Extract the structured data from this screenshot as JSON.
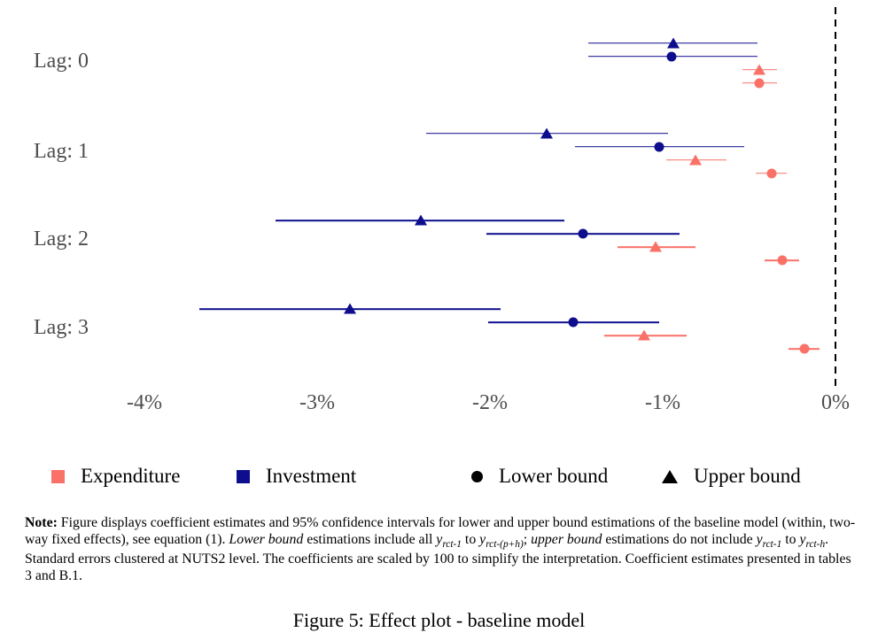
{
  "figure": {
    "caption": "Figure 5: Effect plot - baseline model"
  },
  "colors": {
    "expenditure": "#fa7168",
    "investment": "#0d0d8e",
    "axis_text": "#4d4d4d",
    "zero_line": "#000000",
    "legend_text": "#000000"
  },
  "legend": {
    "items": [
      {
        "label": "Expenditure",
        "swatch": "square",
        "color": "#fa7168"
      },
      {
        "label": "Investment",
        "swatch": "square",
        "color": "#0d0d8e"
      },
      {
        "label": "Lower bound",
        "swatch": "circle",
        "color": "#000000"
      },
      {
        "label": "Upper bound",
        "swatch": "triangle",
        "color": "#000000"
      }
    ]
  },
  "note": {
    "segments": [
      {
        "b": "Note:"
      },
      {
        "t": " Figure displays coefficient estimates and 95% confidence intervals for lower and upper bound estimations of the baseline model (within, two-way fixed effects), see equation (1). "
      },
      {
        "i": "Lower bound"
      },
      {
        "t": " estimations include all "
      },
      {
        "m": "y",
        "sub": "rct-1"
      },
      {
        "t": " to "
      },
      {
        "m": "y",
        "sub": "rct-(p+h)"
      },
      {
        "t": "; "
      },
      {
        "i": "upper bound"
      },
      {
        "t": " estimations do not include "
      },
      {
        "m": "y",
        "sub": "rct-1"
      },
      {
        "t": " to "
      },
      {
        "m": "y",
        "sub": "rct-h"
      },
      {
        "t": ". Standard errors clustered at NUTS2 level. The coefficients are scaled by 100 to simplify the interpretation. Coefficient estimates presented in tables 3 and B.1."
      }
    ]
  },
  "chart_data": {
    "type": "scatter",
    "subtype": "coefficient-effect-plot-with-95ci",
    "title": "",
    "xlabel": "",
    "ylabel": "",
    "grid": false,
    "legend_position": "bottom",
    "groups": [
      "Lag: 0",
      "Lag: 1",
      "Lag: 2",
      "Lag: 3"
    ],
    "x_ticks": [
      {
        "label": "-4%",
        "value": -4
      },
      {
        "label": "-3%",
        "value": -3
      },
      {
        "label": "-2%",
        "value": -2
      },
      {
        "label": "-1%",
        "value": -1
      },
      {
        "label": "0%",
        "value": 0
      }
    ],
    "xlim": [
      -4.65,
      0.25
    ],
    "zero_reference_line": 0,
    "series": [
      {
        "name": "Investment - Upper bound",
        "color": "#0d0d8e",
        "marker": "triangle",
        "row_in_group": 0,
        "points": [
          {
            "group": "Lag: 0",
            "estimate": -0.94,
            "ci_low": -1.43,
            "ci_high": -0.45
          },
          {
            "group": "Lag: 1",
            "estimate": -1.67,
            "ci_low": -2.37,
            "ci_high": -0.97
          },
          {
            "group": "Lag: 2",
            "estimate": -2.4,
            "ci_low": -3.24,
            "ci_high": -1.57
          },
          {
            "group": "Lag: 3",
            "estimate": -2.81,
            "ci_low": -3.68,
            "ci_high": -1.94
          }
        ]
      },
      {
        "name": "Investment - Lower bound",
        "color": "#0d0d8e",
        "marker": "circle",
        "row_in_group": 1,
        "points": [
          {
            "group": "Lag: 0",
            "estimate": -0.95,
            "ci_low": -1.43,
            "ci_high": -0.45
          },
          {
            "group": "Lag: 1",
            "estimate": -1.02,
            "ci_low": -1.51,
            "ci_high": -0.53
          },
          {
            "group": "Lag: 2",
            "estimate": -1.46,
            "ci_low": -2.02,
            "ci_high": -0.9
          },
          {
            "group": "Lag: 3",
            "estimate": -1.52,
            "ci_low": -2.01,
            "ci_high": -1.02
          }
        ]
      },
      {
        "name": "Expenditure - Upper bound",
        "color": "#fa7168",
        "marker": "triangle",
        "row_in_group": 2,
        "points": [
          {
            "group": "Lag: 0",
            "estimate": -0.44,
            "ci_low": -0.54,
            "ci_high": -0.34
          },
          {
            "group": "Lag: 1",
            "estimate": -0.81,
            "ci_low": -0.98,
            "ci_high": -0.63
          },
          {
            "group": "Lag: 2",
            "estimate": -1.04,
            "ci_low": -1.26,
            "ci_high": -0.81
          },
          {
            "group": "Lag: 3",
            "estimate": -1.11,
            "ci_low": -1.34,
            "ci_high": -0.86
          }
        ]
      },
      {
        "name": "Expenditure - Lower bound",
        "color": "#fa7168",
        "marker": "circle",
        "row_in_group": 3,
        "points": [
          {
            "group": "Lag: 0",
            "estimate": -0.44,
            "ci_low": -0.54,
            "ci_high": -0.34
          },
          {
            "group": "Lag: 1",
            "estimate": -0.37,
            "ci_low": -0.46,
            "ci_high": -0.28
          },
          {
            "group": "Lag: 2",
            "estimate": -0.31,
            "ci_low": -0.41,
            "ci_high": -0.21
          },
          {
            "group": "Lag: 3",
            "estimate": -0.18,
            "ci_low": -0.27,
            "ci_high": -0.09
          }
        ]
      }
    ]
  }
}
